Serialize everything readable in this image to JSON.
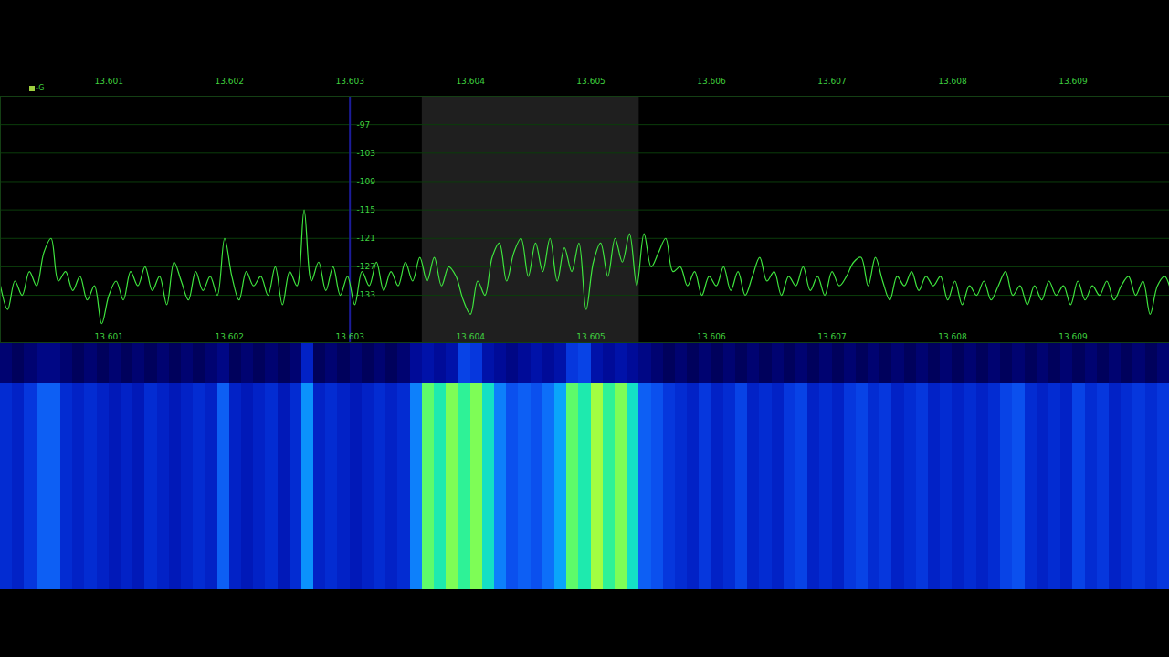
{
  "chart_data": {
    "type": "line",
    "label": "-G",
    "xlim": [
      13.6001,
      13.6098
    ],
    "xticks": [
      13.601,
      13.602,
      13.603,
      13.604,
      13.605,
      13.606,
      13.607,
      13.608,
      13.609
    ],
    "ylim": [
      -143,
      -91
    ],
    "yticks": [
      -97,
      -103,
      -109,
      -115,
      -121,
      -127,
      -133
    ],
    "grid": true,
    "color": "#3fe63f",
    "passband": [
      13.6036,
      13.6054
    ],
    "marker_frequency": 13.603,
    "x": [
      13.6001,
      13.60016,
      13.60022,
      13.60028,
      13.60034,
      13.6004,
      13.60046,
      13.60052,
      13.60058,
      13.60064,
      13.6007,
      13.60076,
      13.60082,
      13.60088,
      13.60094,
      13.601,
      13.60106,
      13.60112,
      13.60118,
      13.60124,
      13.6013,
      13.60136,
      13.60142,
      13.60148,
      13.60154,
      13.6016,
      13.60166,
      13.60172,
      13.60178,
      13.60184,
      13.6019,
      13.60196,
      13.60202,
      13.60208,
      13.60214,
      13.6022,
      13.60226,
      13.60232,
      13.60238,
      13.60244,
      13.6025,
      13.60256,
      13.60262,
      13.60268,
      13.60274,
      13.6028,
      13.60286,
      13.60292,
      13.60298,
      13.60304,
      13.6031,
      13.60316,
      13.60322,
      13.60328,
      13.60334,
      13.6034,
      13.60346,
      13.60352,
      13.60358,
      13.60364,
      13.6037,
      13.60376,
      13.60382,
      13.60388,
      13.60394,
      13.604,
      13.60406,
      13.60412,
      13.60418,
      13.60424,
      13.6043,
      13.60436,
      13.60442,
      13.60448,
      13.60454,
      13.6046,
      13.60466,
      13.60472,
      13.60478,
      13.60484,
      13.6049,
      13.60496,
      13.60502,
      13.60508,
      13.60514,
      13.6052,
      13.60526,
      13.60532,
      13.60538,
      13.60544,
      13.6055,
      13.60556,
      13.60562,
      13.60568,
      13.60574,
      13.6058,
      13.60586,
      13.60592,
      13.60598,
      13.60604,
      13.6061,
      13.60616,
      13.60622,
      13.60628,
      13.60634,
      13.6064,
      13.60646,
      13.60652,
      13.60658,
      13.60664,
      13.6067,
      13.60676,
      13.60682,
      13.60688,
      13.60694,
      13.607,
      13.60706,
      13.60712,
      13.60718,
      13.60724,
      13.6073,
      13.60736,
      13.60742,
      13.60748,
      13.60754,
      13.6076,
      13.60766,
      13.60772,
      13.60778,
      13.60784,
      13.6079,
      13.60796,
      13.60802,
      13.60808,
      13.60814,
      13.6082,
      13.60826,
      13.60832,
      13.60838,
      13.60844,
      13.6085,
      13.60856,
      13.60862,
      13.60868,
      13.60874,
      13.6088,
      13.60886,
      13.60892,
      13.60898,
      13.60904,
      13.6091,
      13.60916,
      13.60922,
      13.60928,
      13.60934,
      13.6094,
      13.60946,
      13.60952,
      13.60958,
      13.60964,
      13.6097,
      13.60976,
      13.60982
    ],
    "values": [
      -131,
      -136,
      -130,
      -133,
      -128,
      -131,
      -124,
      -121,
      -130,
      -128,
      -132,
      -129,
      -134,
      -131,
      -139,
      -133,
      -130,
      -134,
      -128,
      -131,
      -127,
      -132,
      -129,
      -135,
      -126,
      -130,
      -134,
      -128,
      -132,
      -129,
      -133,
      -121,
      -129,
      -134,
      -128,
      -131,
      -129,
      -133,
      -127,
      -135,
      -128,
      -131,
      -115,
      -130,
      -126,
      -132,
      -127,
      -133,
      -129,
      -135,
      -128,
      -131,
      -126,
      -132,
      -128,
      -131,
      -126,
      -130,
      -125,
      -130,
      -125,
      -131,
      -127,
      -129,
      -134,
      -137,
      -130,
      -133,
      -125,
      -122,
      -130,
      -124,
      -121,
      -129,
      -122,
      -128,
      -121,
      -130,
      -123,
      -128,
      -122,
      -136,
      -126,
      -122,
      -129,
      -121,
      -126,
      -120,
      -131,
      -120,
      -127,
      -124,
      -121,
      -128,
      -127,
      -131,
      -128,
      -133,
      -129,
      -131,
      -127,
      -132,
      -128,
      -133,
      -129,
      -125,
      -130,
      -128,
      -133,
      -129,
      -131,
      -127,
      -132,
      -129,
      -133,
      -128,
      -131,
      -129,
      -126,
      -125,
      -131,
      -125,
      -130,
      -134,
      -129,
      -131,
      -128,
      -132,
      -129,
      -131,
      -129,
      -134,
      -130,
      -135,
      -131,
      -133,
      -130,
      -134,
      -131,
      -128,
      -133,
      -131,
      -135,
      -131,
      -134,
      -130,
      -133,
      -131,
      -135,
      -130,
      -134,
      -131,
      -133,
      -130,
      -134,
      -131,
      -129,
      -133,
      -130,
      -137,
      -131,
      -129,
      -133
    ],
    "waterfall": {
      "bins": [
        13.6001,
        13.6002,
        13.6003,
        13.6004,
        13.6005,
        13.6006,
        13.6007,
        13.6008,
        13.6009,
        13.601,
        13.6011,
        13.6012,
        13.6013,
        13.6014,
        13.6015,
        13.6016,
        13.6017,
        13.6018,
        13.6019,
        13.602,
        13.6021,
        13.6022,
        13.6023,
        13.6024,
        13.6025,
        13.6026,
        13.6027,
        13.6028,
        13.6029,
        13.603,
        13.6031,
        13.6032,
        13.6033,
        13.6034,
        13.6035,
        13.6036,
        13.6037,
        13.6038,
        13.6039,
        13.604,
        13.6041,
        13.6042,
        13.6043,
        13.6044,
        13.6045,
        13.6046,
        13.6047,
        13.6048,
        13.6049,
        13.605,
        13.6051,
        13.6052,
        13.6053,
        13.6054,
        13.6055,
        13.6056,
        13.6057,
        13.6058,
        13.6059,
        13.606,
        13.6061,
        13.6062,
        13.6063,
        13.6064,
        13.6065,
        13.6066,
        13.6067,
        13.6068,
        13.6069,
        13.607,
        13.6071,
        13.6072,
        13.6073,
        13.6074,
        13.6075,
        13.6076,
        13.6077,
        13.6078,
        13.6079,
        13.608,
        13.6081,
        13.6082,
        13.6083,
        13.6084,
        13.6085,
        13.6086,
        13.6087,
        13.6088,
        13.6089,
        13.609,
        13.6091,
        13.6092,
        13.6093,
        13.6094,
        13.6095,
        13.6096,
        13.6097,
        13.6098
      ],
      "values": [
        [
          -136,
          -137,
          -136,
          -135,
          -135,
          -136,
          -137,
          -136,
          -137,
          -136,
          -137,
          -136,
          -137,
          -136,
          -137,
          -136,
          -137,
          -136,
          -135,
          -137,
          -136,
          -137,
          -136,
          -137,
          -136,
          -131,
          -137,
          -136,
          -137,
          -136,
          -137,
          -136,
          -137,
          -136,
          -134,
          -133,
          -134,
          -133,
          -128,
          -129,
          -133,
          -134,
          -135,
          -134,
          -133,
          -134,
          -133,
          -129,
          -128,
          -133,
          -134,
          -133,
          -134,
          -135,
          -136,
          -137,
          -136,
          -137,
          -136,
          -137,
          -136,
          -137,
          -136,
          -137,
          -136,
          -137,
          -136,
          -137,
          -136,
          -137,
          -136,
          -137,
          -136,
          -137,
          -136,
          -137,
          -136,
          -137,
          -136,
          -137,
          -136,
          -137,
          -136,
          -137,
          -136,
          -137,
          -136,
          -137,
          -136,
          -137,
          -136,
          -137,
          -136,
          -137,
          -136,
          -137,
          -136
        ],
        [
          -130,
          -131,
          -129,
          -126,
          -126,
          -130,
          -131,
          -130,
          -131,
          -132,
          -131,
          -132,
          -130,
          -131,
          -132,
          -131,
          -130,
          -131,
          -126,
          -131,
          -132,
          -131,
          -130,
          -132,
          -130,
          -123,
          -131,
          -130,
          -131,
          -132,
          -131,
          -130,
          -131,
          -130,
          -124,
          -114,
          -117,
          -113,
          -116,
          -113,
          -118,
          -124,
          -127,
          -126,
          -127,
          -125,
          -122,
          -114,
          -117,
          -112,
          -116,
          -113,
          -118,
          -126,
          -127,
          -129,
          -130,
          -131,
          -129,
          -131,
          -130,
          -128,
          -131,
          -130,
          -131,
          -129,
          -128,
          -131,
          -130,
          -131,
          -129,
          -128,
          -130,
          -129,
          -131,
          -130,
          -129,
          -131,
          -130,
          -131,
          -130,
          -131,
          -130,
          -128,
          -127,
          -130,
          -131,
          -130,
          -131,
          -128,
          -130,
          -129,
          -131,
          -130,
          -129,
          -130,
          -129
        ]
      ],
      "zlim": [
        -140,
        -110
      ],
      "colors": [
        "#000018",
        "#00008c",
        "#0028d8",
        "#1468ff",
        "#00d0ff",
        "#28ff78",
        "#f0ff1e"
      ]
    }
  }
}
